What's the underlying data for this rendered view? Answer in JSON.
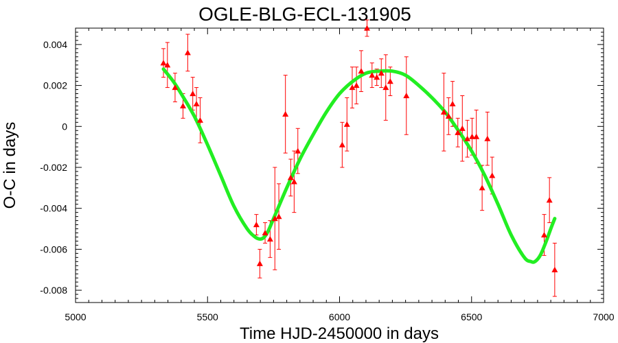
{
  "chart_data": {
    "type": "scatter",
    "title": "OGLE-BLG-ECL-131905",
    "xlabel": "Time HJD-2450000 in days",
    "ylabel": "O-C in days",
    "xlim": [
      5000,
      7000
    ],
    "ylim": [
      -0.0086,
      0.0048
    ],
    "xticks": [
      5000,
      5500,
      6000,
      6500,
      7000
    ],
    "xtick_labels": [
      "5000",
      "5500",
      "6000",
      "6500",
      "7000"
    ],
    "yticks": [
      0.004,
      0.002,
      0,
      -0.002,
      -0.004,
      -0.006,
      -0.008
    ],
    "ytick_labels": [
      "0.004",
      "0.002",
      "0",
      "-0.002",
      "-0.004",
      "-0.006",
      "-0.008"
    ],
    "grid": false,
    "series": [
      {
        "kind": "points_with_errorbars",
        "marker": "triangle",
        "color": "#ff0000",
        "points": [
          {
            "x": 5333,
            "y": 0.0031,
            "err": 0.0007
          },
          {
            "x": 5348,
            "y": 0.003,
            "err": 0.0011
          },
          {
            "x": 5377,
            "y": 0.0019,
            "err": 0.0007
          },
          {
            "x": 5407,
            "y": 0.001,
            "err": 0.0006
          },
          {
            "x": 5425,
            "y": 0.0036,
            "err": 0.0009
          },
          {
            "x": 5444,
            "y": 0.0016,
            "err": 0.0008
          },
          {
            "x": 5458,
            "y": 0.0011,
            "err": 0.0008
          },
          {
            "x": 5472,
            "y": 0.0003,
            "err": 0.0011
          },
          {
            "x": 5685,
            "y": -0.0048,
            "err": 0.0005
          },
          {
            "x": 5698,
            "y": -0.0067,
            "err": 0.0007
          },
          {
            "x": 5718,
            "y": -0.0052,
            "err": 0.0005
          },
          {
            "x": 5737,
            "y": -0.0055,
            "err": 0.0009
          },
          {
            "x": 5755,
            "y": -0.0045,
            "err": 0.0025
          },
          {
            "x": 5770,
            "y": -0.0044,
            "err": 0.0016
          },
          {
            "x": 5795,
            "y": 0.0006,
            "err": 0.0019
          },
          {
            "x": 5815,
            "y": -0.0025,
            "err": 0.0009
          },
          {
            "x": 5828,
            "y": -0.0027,
            "err": 0.0015
          },
          {
            "x": 5842,
            "y": -0.0012,
            "err": 0.0011
          },
          {
            "x": 6010,
            "y": -0.0009,
            "err": 0.0011
          },
          {
            "x": 6028,
            "y": 0.0001,
            "err": 0.0013
          },
          {
            "x": 6048,
            "y": 0.0019,
            "err": 0.001
          },
          {
            "x": 6064,
            "y": 0.002,
            "err": 0.0009
          },
          {
            "x": 6082,
            "y": 0.0027,
            "err": 0.001
          },
          {
            "x": 6104,
            "y": 0.0048,
            "err": 0.0004
          },
          {
            "x": 6123,
            "y": 0.0025,
            "err": 0.0006
          },
          {
            "x": 6141,
            "y": 0.0024,
            "err": 0.0004
          },
          {
            "x": 6158,
            "y": 0.0026,
            "err": 0.0007
          },
          {
            "x": 6175,
            "y": 0.0019,
            "err": 0.0016
          },
          {
            "x": 6192,
            "y": 0.0022,
            "err": 0.0007
          },
          {
            "x": 6253,
            "y": 0.0015,
            "err": 0.0019
          },
          {
            "x": 6395,
            "y": 0.0007,
            "err": 0.0019
          },
          {
            "x": 6413,
            "y": 0.0005,
            "err": 0.0009
          },
          {
            "x": 6428,
            "y": 0.0011,
            "err": 0.0011
          },
          {
            "x": 6448,
            "y": -0.0003,
            "err": 0.0007
          },
          {
            "x": 6465,
            "y": -0.0001,
            "err": 0.0016
          },
          {
            "x": 6484,
            "y": -0.0006,
            "err": 0.0009
          },
          {
            "x": 6502,
            "y": -0.0005,
            "err": 0.0009
          },
          {
            "x": 6518,
            "y": -0.0005,
            "err": 0.0013
          },
          {
            "x": 6540,
            "y": -0.003,
            "err": 0.0011
          },
          {
            "x": 6560,
            "y": -0.0006,
            "err": 0.0013
          },
          {
            "x": 6578,
            "y": -0.0024,
            "err": 0.0009
          },
          {
            "x": 6775,
            "y": -0.0053,
            "err": 0.001
          },
          {
            "x": 6795,
            "y": -0.0036,
            "err": 0.0011
          },
          {
            "x": 6815,
            "y": -0.007,
            "err": 0.0013
          }
        ]
      },
      {
        "kind": "fit_curve",
        "color": "#22ee22",
        "x": [
          5333,
          5370,
          5400,
          5450,
          5500,
          5550,
          5600,
          5650,
          5680,
          5700,
          5715,
          5730,
          5750,
          5800,
          5850,
          5900,
          5950,
          6000,
          6050,
          6100,
          6150,
          6200,
          6250,
          6300,
          6350,
          6400,
          6450,
          6500,
          6550,
          6600,
          6650,
          6700,
          6725,
          6740,
          6760,
          6780,
          6800,
          6815
        ],
        "y": [
          0.0028,
          0.0022,
          0.0016,
          0.0005,
          -0.0009,
          -0.0024,
          -0.0039,
          -0.005,
          -0.0054,
          -0.0055,
          -0.0054,
          -0.0051,
          -0.0045,
          -0.003,
          -0.0016,
          -0.0004,
          0.0007,
          0.0016,
          0.0022,
          0.0026,
          0.0027,
          0.0027,
          0.0025,
          0.002,
          0.0014,
          0.0007,
          -0.0002,
          -0.0012,
          -0.0024,
          -0.0038,
          -0.0053,
          -0.0064,
          -0.0066,
          -0.0066,
          -0.0063,
          -0.0057,
          -0.005,
          -0.0045
        ]
      }
    ]
  }
}
